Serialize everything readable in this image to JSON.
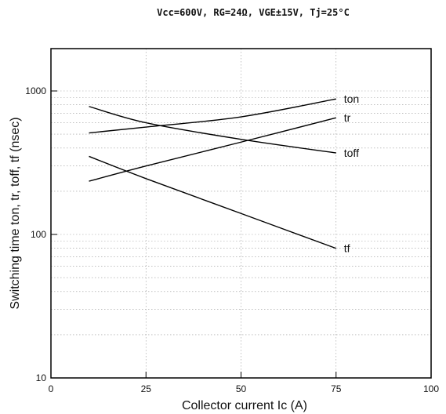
{
  "chart_data": {
    "type": "line",
    "title": "Vcc=600V, RG=24Ω, VGE±15V, Tj=25°C",
    "xlabel": "Collector current   Ic (A)",
    "ylabel": "Switching time   ton, tr, toff, tf (nsec)",
    "xlim": [
      0,
      100
    ],
    "ylim": [
      10,
      2000
    ],
    "yscale": "log",
    "grid": true,
    "x_ticks": [
      0,
      25,
      50,
      75,
      100
    ],
    "x_tick_labels": [
      "0",
      "25",
      "50",
      "75",
      "100"
    ],
    "y_ticks": [
      10,
      100,
      1000
    ],
    "y_tick_labels": [
      "10",
      "100",
      "1000"
    ],
    "series": [
      {
        "name": "ton",
        "x": [
          10,
          25,
          50,
          75
        ],
        "y": [
          510,
          560,
          660,
          880
        ]
      },
      {
        "name": "tr",
        "x": [
          10,
          25,
          50,
          75
        ],
        "y": [
          235,
          300,
          440,
          650
        ]
      },
      {
        "name": "toff",
        "x": [
          10,
          25,
          50,
          75
        ],
        "y": [
          780,
          600,
          460,
          370
        ]
      },
      {
        "name": "tf",
        "x": [
          10,
          25,
          50,
          75
        ],
        "y": [
          350,
          245,
          140,
          80
        ]
      }
    ]
  }
}
